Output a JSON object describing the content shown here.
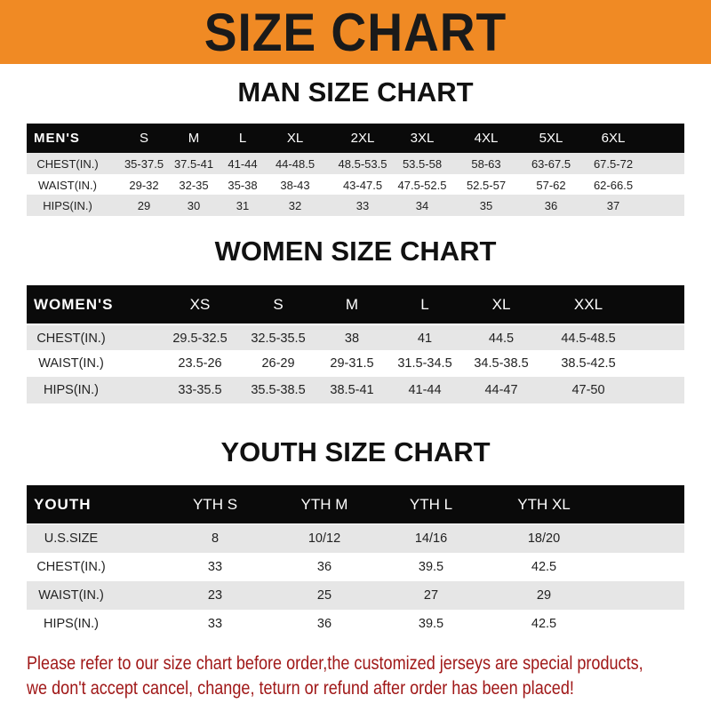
{
  "banner": {
    "title": "SIZE CHART",
    "color": "#f08a24"
  },
  "men": {
    "title": "MAN SIZE CHART",
    "header": [
      "MEN'S",
      "S",
      "M",
      "L",
      "XL",
      "2XL",
      "3XL",
      "4XL",
      "5XL",
      "6XL"
    ],
    "rows": [
      [
        "CHEST(IN.)",
        "35-37.5",
        "37.5-41",
        "41-44",
        "44-48.5",
        "48.5-53.5",
        "53.5-58",
        "58-63",
        "63-67.5",
        "67.5-72"
      ],
      [
        "WAIST(IN.)",
        "29-32",
        "32-35",
        "35-38",
        "38-43",
        "43-47.5",
        "47.5-52.5",
        "52.5-57",
        "57-62",
        "62-66.5"
      ],
      [
        "HIPS(IN.)",
        "29",
        "30",
        "31",
        "32",
        "33",
        "34",
        "35",
        "36",
        "37"
      ]
    ]
  },
  "women": {
    "title": "WOMEN SIZE CHART",
    "header": [
      "WOMEN'S",
      "XS",
      "S",
      "M",
      "L",
      "XL",
      "XXL"
    ],
    "rows": [
      [
        "CHEST(IN.)",
        "29.5-32.5",
        "32.5-35.5",
        "38",
        "41",
        "44.5",
        "44.5-48.5"
      ],
      [
        "WAIST(IN.)",
        "23.5-26",
        "26-29",
        "29-31.5",
        "31.5-34.5",
        "34.5-38.5",
        "38.5-42.5"
      ],
      [
        "HIPS(IN.)",
        "33-35.5",
        "35.5-38.5",
        "38.5-41",
        "41-44",
        "44-47",
        "47-50"
      ]
    ]
  },
  "youth": {
    "title": "YOUTH SIZE CHART",
    "header": [
      "YOUTH",
      "YTH S",
      "YTH M",
      "YTH L",
      "YTH XL"
    ],
    "rows": [
      [
        "U.S.SIZE",
        "8",
        "10/12",
        "14/16",
        "18/20"
      ],
      [
        "CHEST(IN.)",
        "33",
        "36",
        "39.5",
        "42.5"
      ],
      [
        "WAIST(IN.)",
        "23",
        "25",
        "27",
        "29"
      ],
      [
        "HIPS(IN.)",
        "33",
        "36",
        "39.5",
        "42.5"
      ]
    ]
  },
  "footer": {
    "line1": "Please refer to our size chart before order,the customized jerseys are special products,",
    "line2": "we don't accept cancel, change, teturn or refund after order has been placed!",
    "color": "#a01818"
  }
}
